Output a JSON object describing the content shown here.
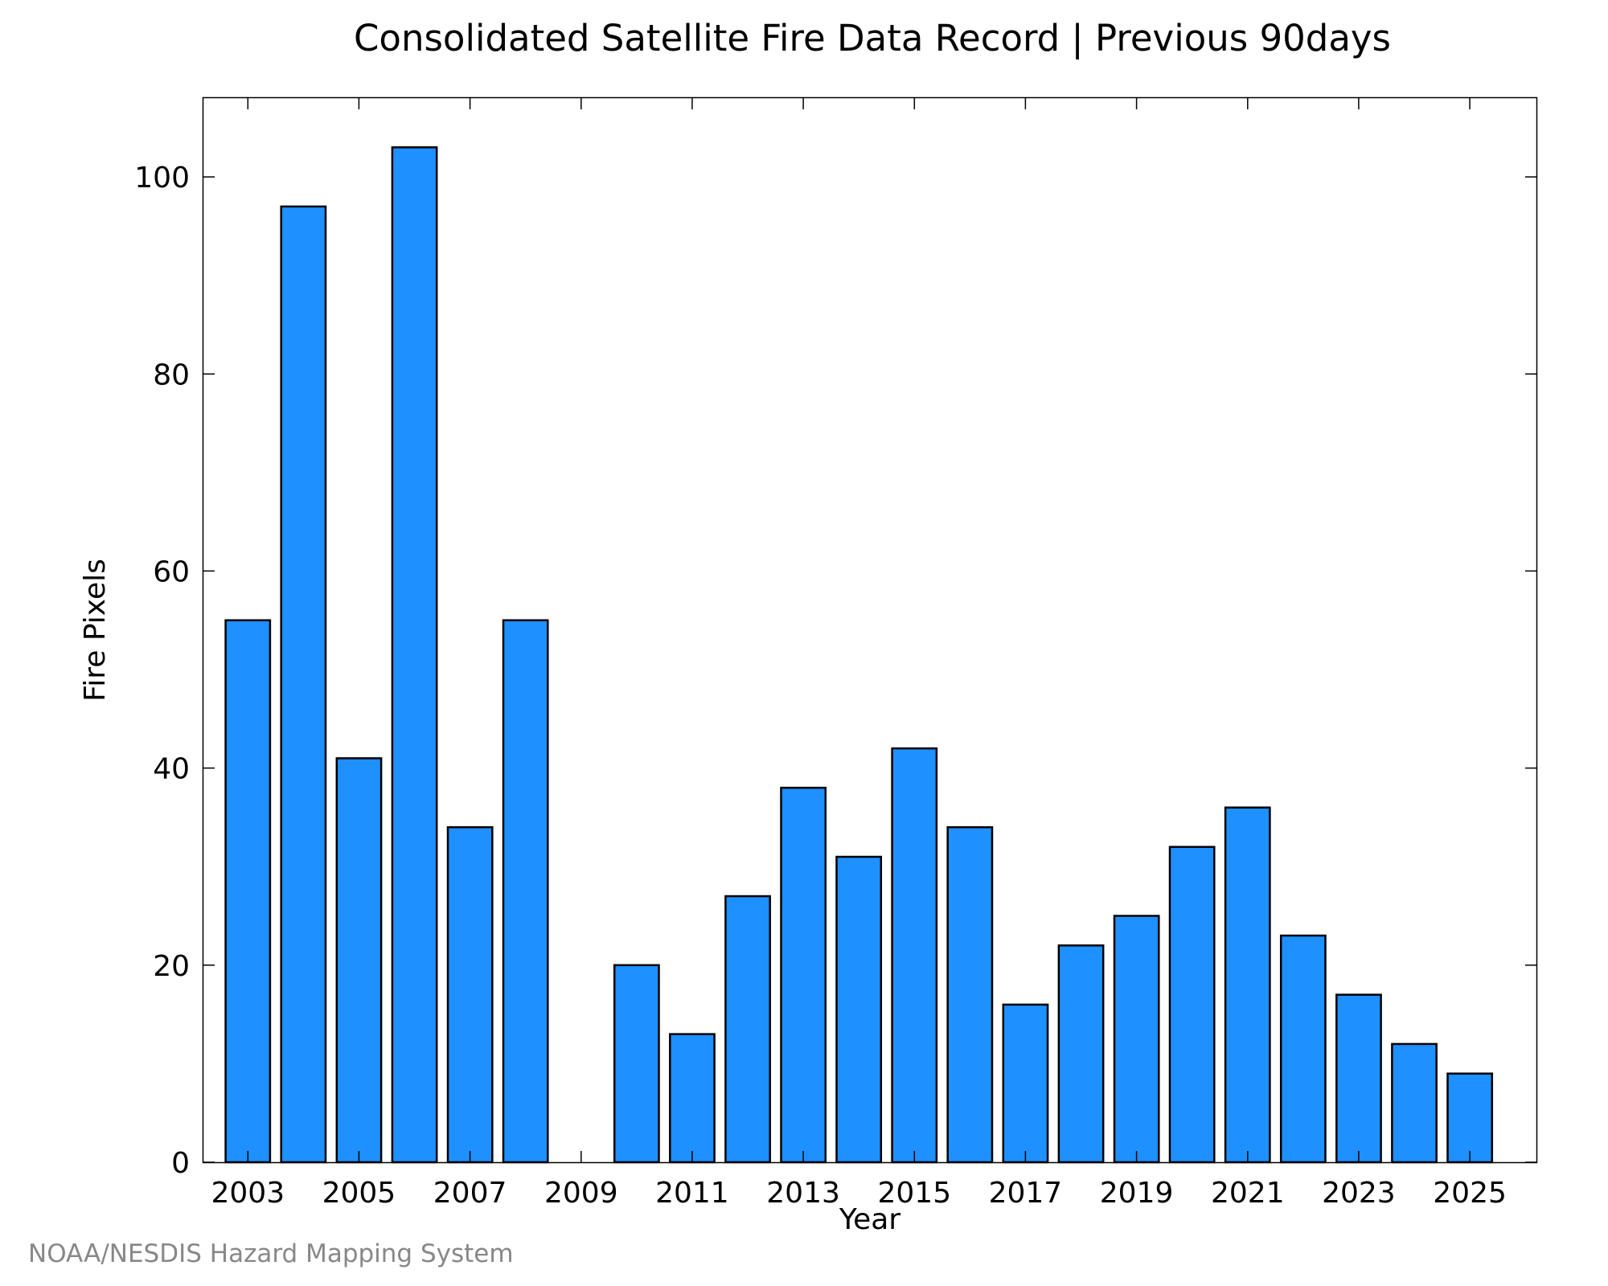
{
  "chart_data": {
    "type": "bar",
    "title": "Consolidated Satellite Fire Data Record | Previous 90days",
    "xlabel": "Year",
    "ylabel": "Fire Pixels",
    "categories": [
      "2003",
      "2004",
      "2005",
      "2006",
      "2007",
      "2008",
      "2009",
      "2010",
      "2011",
      "2012",
      "2013",
      "2014",
      "2015",
      "2016",
      "2017",
      "2018",
      "2019",
      "2020",
      "2021",
      "2022",
      "2023",
      "2024",
      "2025"
    ],
    "values": [
      55,
      97,
      41,
      103,
      34,
      55,
      0,
      20,
      13,
      27,
      38,
      31,
      42,
      34,
      16,
      22,
      25,
      32,
      36,
      23,
      17,
      12,
      9
    ],
    "x_tick_labels": [
      "2003",
      "2005",
      "2007",
      "2009",
      "2011",
      "2013",
      "2015",
      "2017",
      "2019",
      "2021",
      "2023",
      "2025"
    ],
    "y_tick_labels": [
      "0",
      "20",
      "40",
      "60",
      "80",
      "100"
    ],
    "y_ticks": [
      0,
      20,
      40,
      60,
      80,
      100
    ],
    "ylim": [
      0,
      108
    ],
    "xlim": [
      2002.2,
      2026.2
    ],
    "grid": false,
    "legend": false,
    "bar_color": "#1e90ff",
    "bar_edge_color": "#000000",
    "source_note": "NOAA/NESDIS Hazard Mapping System"
  }
}
